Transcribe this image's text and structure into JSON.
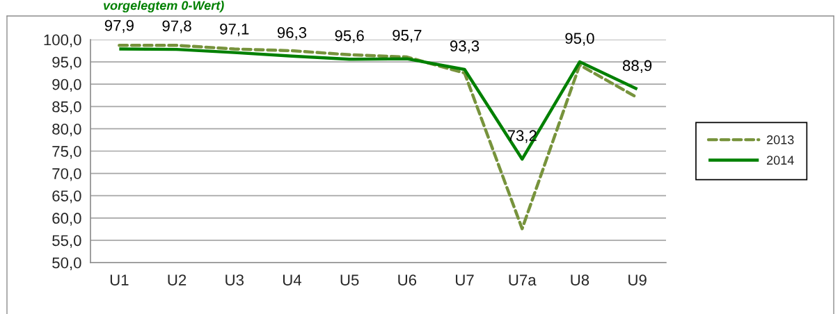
{
  "chart_data": {
    "type": "line",
    "title": "vorgelegtem 0-Wert)",
    "categories": [
      "U1",
      "U2",
      "U3",
      "U4",
      "U5",
      "U6",
      "U7",
      "U7a",
      "U8",
      "U9"
    ],
    "series": [
      {
        "name": "2013",
        "color": "#77933c",
        "line_style": "dashed",
        "values": [
          98.7,
          98.7,
          97.9,
          97.5,
          96.6,
          96.1,
          92.5,
          57.6,
          94.3,
          87.0
        ]
      },
      {
        "name": "2014",
        "color": "#008000",
        "line_style": "solid",
        "values": [
          97.9,
          97.8,
          97.1,
          96.3,
          95.6,
          95.7,
          93.3,
          73.2,
          95.0,
          88.9
        ],
        "value_labels": [
          "97,9",
          "97,8",
          "97,1",
          "96,3",
          "95,6",
          "95,7",
          "93,3",
          "73,2",
          "95,0",
          "88,9"
        ]
      }
    ],
    "ylim": [
      50,
      100
    ],
    "yticks": [
      {
        "value": 50,
        "label": "50,0"
      },
      {
        "value": 55,
        "label": "55,0"
      },
      {
        "value": 60,
        "label": "60,0"
      },
      {
        "value": 65,
        "label": "65,0"
      },
      {
        "value": 70,
        "label": "70,0"
      },
      {
        "value": 75,
        "label": "75,0"
      },
      {
        "value": 80,
        "label": "80,0"
      },
      {
        "value": 85,
        "label": "85,0"
      },
      {
        "value": 90,
        "label": "90,0"
      },
      {
        "value": 95,
        "label": "95,0"
      },
      {
        "value": 100,
        "label": "100,0"
      }
    ],
    "grid": "y",
    "legend": "right"
  }
}
